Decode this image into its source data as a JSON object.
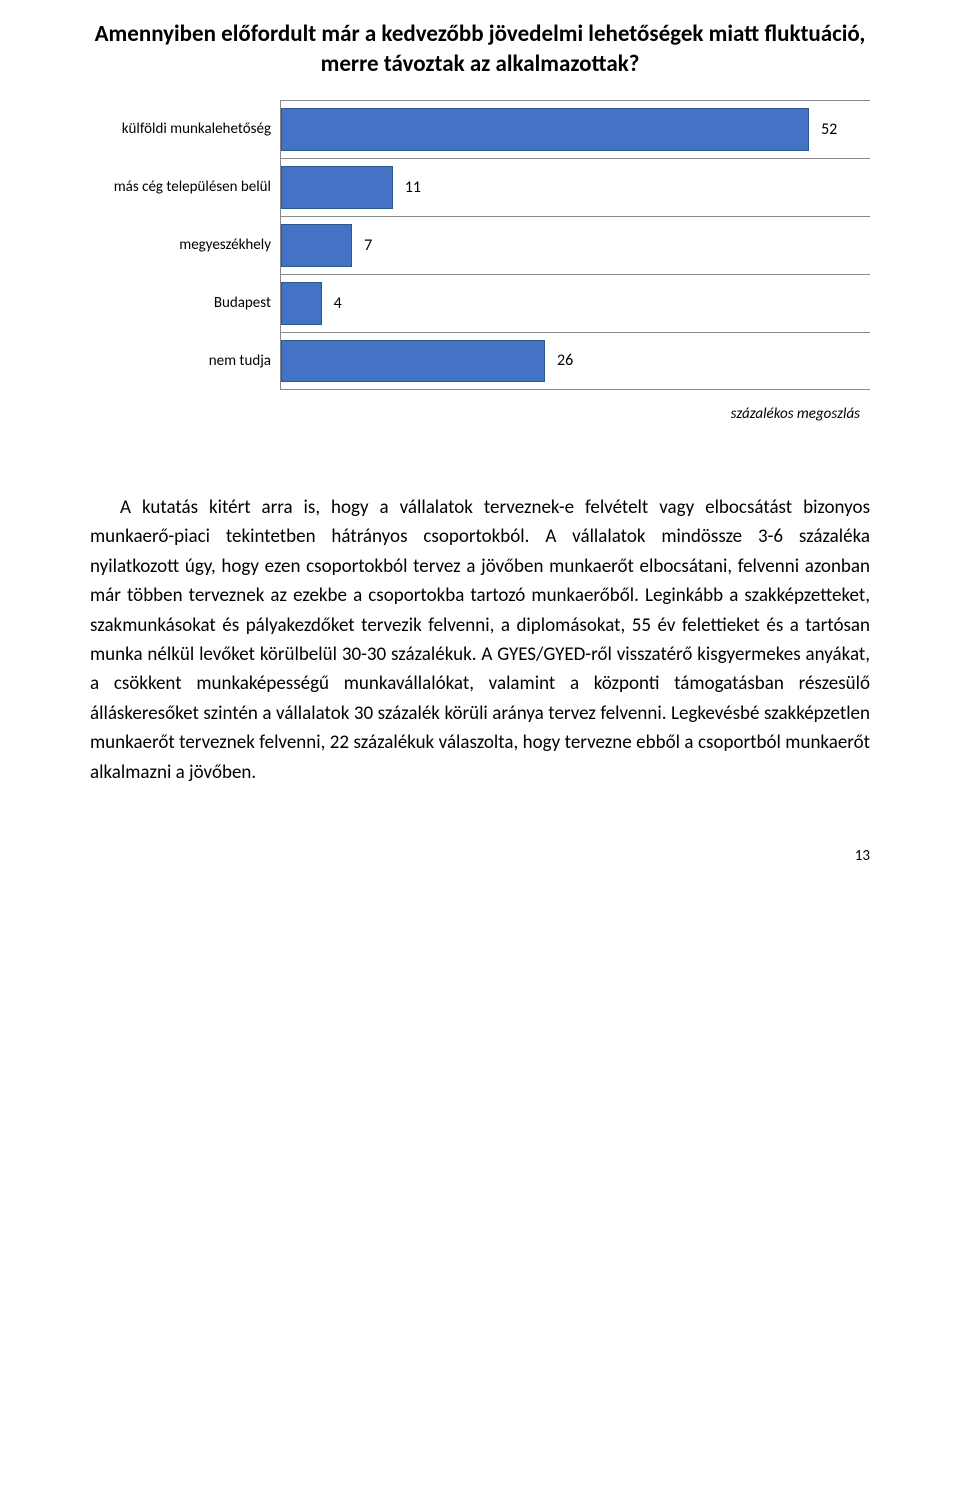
{
  "chart": {
    "type": "bar",
    "title": "Amennyiben előfordult már a kedvezőbb jövedelmi lehetőségek miatt fluktuáció, merre távoztak az alkalmazottak?",
    "categories": [
      "külföldi munkalehetőség",
      "más cég településen belül",
      "megyeszékhely",
      "Budapest",
      "nem tudja"
    ],
    "values": [
      52,
      11,
      7,
      4,
      26
    ],
    "max_value": 58,
    "bar_color": "#4472c4",
    "bar_border_color": "#2a5a8a",
    "grid_color": "#888888",
    "background_color": "#ffffff",
    "x_label": "százalékos megoszlás",
    "label_fontsize": 15,
    "value_fontsize": 16,
    "title_fontsize": 23
  },
  "paragraph": "A kutatás kitért arra is, hogy a vállalatok terveznek-e felvételt vagy elbocsátást bizonyos munkaerő-piaci tekintetben hátrányos csoportokból. A vállalatok mindössze 3-6 százaléka nyilatkozott úgy, hogy ezen csoportokból tervez a jövőben munkaerőt elbocsátani, felvenni azonban már többen terveznek az ezekbe a csoportokba tartozó munkaerőből. Leginkább a szakképzetteket, szakmunkásokat és pályakezdőket tervezik felvenni, a diplomásokat, 55 év felettieket és a tartósan munka nélkül levőket körülbelül 30-30 százalékuk. A GYES/GYED-ről visszatérő kisgyermekes anyákat, a csökkent munkaképességű munkavállalókat, valamint a központi támogatásban részesülő álláskeresőket szintén a vállalatok 30 százalék körüli aránya tervez felvenni. Legkevésbé szakképzetlen munkaerőt terveznek felvenni, 22 százalékuk válaszolta, hogy tervezne ebből a csoportból munkaerőt alkalmazni a jövőben.",
  "page_number": "13"
}
